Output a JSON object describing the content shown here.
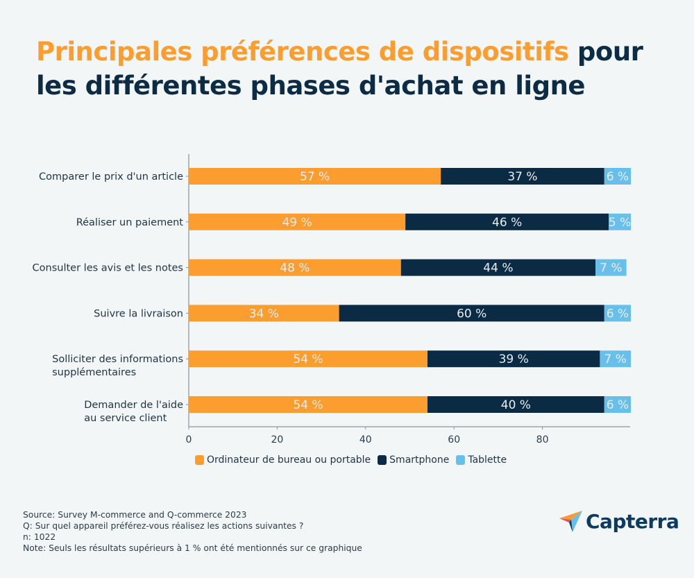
{
  "title": {
    "highlight": "Principales préférences de dispositifs",
    "rest_line1": " pour",
    "line2": "les différentes phases d'achat en ligne"
  },
  "colors": {
    "desktop": "#fc9d30",
    "smartphone": "#0b2a44",
    "tablet": "#68c0ea",
    "title_dark": "#0c2c45",
    "title_accent": "#fc9d30"
  },
  "chart_data": {
    "type": "bar",
    "orientation": "horizontal",
    "stacked": true,
    "title": "Principales préférences de dispositifs pour les différentes phases d'achat en ligne",
    "xlabel": "",
    "ylabel": "",
    "xlim": [
      0,
      100
    ],
    "xticks": [
      0,
      20,
      40,
      60,
      80
    ],
    "grid": false,
    "legend_position": "bottom",
    "categories": [
      [
        "Comparer le prix  d'un article"
      ],
      [
        "Réaliser un paiement"
      ],
      [
        "Consulter les avis et les notes"
      ],
      [
        "Suivre la livraison"
      ],
      [
        "Solliciter des informations",
        "supplémentaires"
      ],
      [
        "Demander de l'aide",
        "au service client"
      ]
    ],
    "series": [
      {
        "name": "Ordinateur de bureau ou portable",
        "color": "#fc9d30",
        "values": [
          57,
          49,
          48,
          34,
          54,
          54
        ],
        "labels": [
          "57 %",
          "49 %",
          "48 %",
          "34 %",
          "54 %",
          "54 %"
        ]
      },
      {
        "name": "Smartphone",
        "color": "#0b2a44",
        "values": [
          37,
          46,
          44,
          60,
          39,
          40
        ],
        "labels": [
          "37 %",
          "46 %",
          "44 %",
          "60 %",
          "39 %",
          "40 %"
        ]
      },
      {
        "name": "Tablette",
        "color": "#68c0ea",
        "values": [
          6,
          5,
          7,
          6,
          7,
          6
        ],
        "labels": [
          "6 %",
          "5 %",
          "7 %",
          "6 %",
          "7 %",
          "6 %"
        ]
      }
    ]
  },
  "legend": [
    {
      "label": "Ordinateur de bureau ou portable",
      "color": "#fc9d30"
    },
    {
      "label": "Smartphone",
      "color": "#0b2a44"
    },
    {
      "label": "Tablette",
      "color": "#68c0ea"
    }
  ],
  "footer": {
    "source": "Source: Survey M-commerce and Q-commerce 2023",
    "question": "Q: Sur quel appareil préférez-vous réalisez les actions suivantes ?",
    "n": "n: 1022",
    "note": "Note: Seuls les résultats supérieurs à 1 % ont été mentionnés sur ce graphique"
  },
  "logo": {
    "text": "Capterra"
  }
}
